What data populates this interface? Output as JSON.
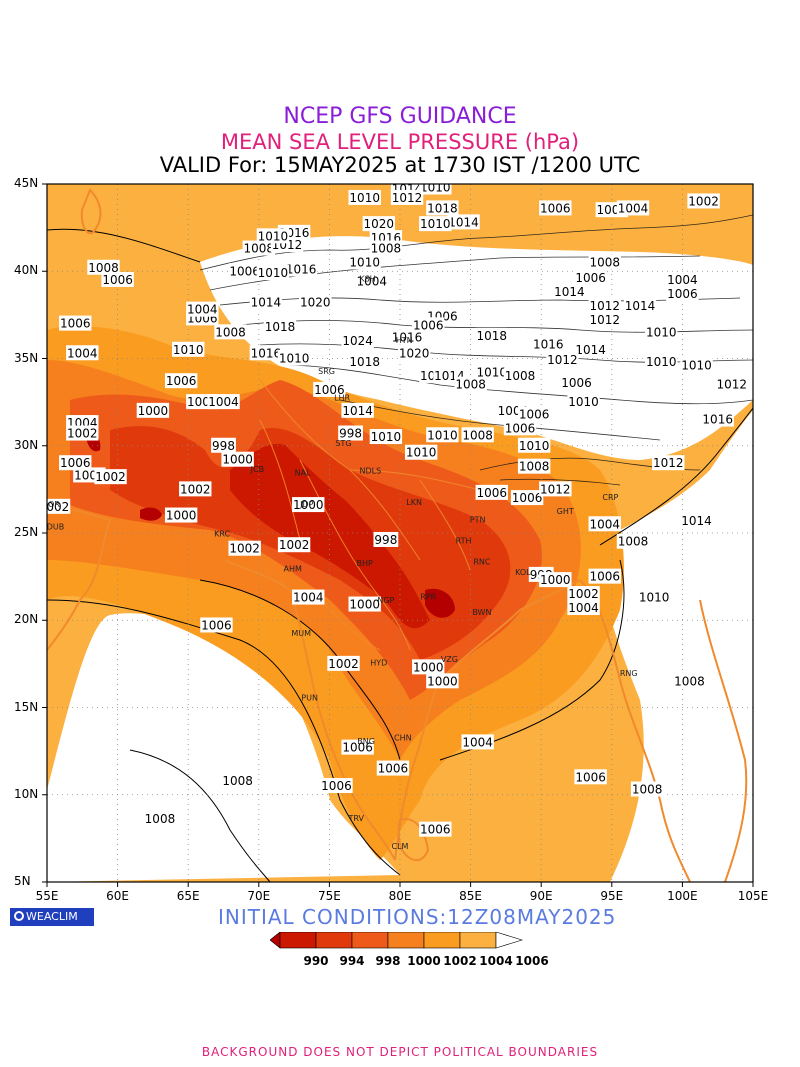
{
  "header": {
    "line1": "NCEP GFS GUIDANCE",
    "line2": "MEAN SEA LEVEL PRESSURE (hPa)",
    "line3": "VALID For: 15MAY2025 at 1730 IST /1200 UTC"
  },
  "colors": {
    "line1": "#8a1ed8",
    "line2": "#e0207a",
    "line3": "#000000",
    "init": "#5a7be0",
    "footer": "#e0207a",
    "coast": "#f08a2c",
    "land_low": "#fbb040",
    "sea_land": "#ffffff"
  },
  "axes": {
    "lat_labels": [
      "45N",
      "40N",
      "35N",
      "30N",
      "25N",
      "20N",
      "15N",
      "10N",
      "5N"
    ],
    "lon_labels": [
      "55E",
      "60E",
      "65E",
      "70E",
      "75E",
      "80E",
      "85E",
      "90E",
      "95E",
      "100E",
      "105E"
    ],
    "lat_range": [
      5,
      45
    ],
    "lon_range": [
      55,
      105
    ]
  },
  "logo": "WEACLIM",
  "initial_conditions": "INITIAL CONDITIONS:12Z08MAY2025",
  "colorbar": {
    "labels": [
      "990",
      "994",
      "998",
      "1000",
      "1002",
      "1004",
      "1006"
    ],
    "fills": [
      "#b40000",
      "#cc1800",
      "#e03a0c",
      "#ee5a1a",
      "#f7801e",
      "#fa9c20",
      "#fbb040",
      "#fcc870"
    ]
  },
  "contour_labels": [
    {
      "t": "1008",
      "lon": 59.0,
      "lat": 40.2
    },
    {
      "t": "1006",
      "lon": 60.0,
      "lat": 39.5
    },
    {
      "t": "1006",
      "lon": 57.0,
      "lat": 37.0
    },
    {
      "t": "1004",
      "lon": 57.5,
      "lat": 35.3
    },
    {
      "t": "1000",
      "lon": 62.5,
      "lat": 32.0
    },
    {
      "t": "1004",
      "lon": 57.5,
      "lat": 31.3
    },
    {
      "t": "1002",
      "lon": 57.5,
      "lat": 30.7
    },
    {
      "t": "1006",
      "lon": 57.0,
      "lat": 29.0
    },
    {
      "t": "1004",
      "lon": 58.0,
      "lat": 28.3
    },
    {
      "t": "1002",
      "lon": 59.5,
      "lat": 28.2
    },
    {
      "t": "1002",
      "lon": 55.5,
      "lat": 26.5
    },
    {
      "t": "1000",
      "lon": 64.5,
      "lat": 26.0
    },
    {
      "t": "1002",
      "lon": 65.5,
      "lat": 27.5
    },
    {
      "t": "998",
      "lon": 67.5,
      "lat": 30.0
    },
    {
      "t": "1000",
      "lon": 68.5,
      "lat": 29.2
    },
    {
      "t": "1006",
      "lon": 66.0,
      "lat": 37.3
    },
    {
      "t": "1008",
      "lon": 68.0,
      "lat": 36.5
    },
    {
      "t": "1004",
      "lon": 66.0,
      "lat": 37.8
    },
    {
      "t": "1010",
      "lon": 65.0,
      "lat": 35.5
    },
    {
      "t": "1006",
      "lon": 64.5,
      "lat": 33.7
    },
    {
      "t": "1008",
      "lon": 66.0,
      "lat": 32.5
    },
    {
      "t": "1004",
      "lon": 67.5,
      "lat": 32.5
    },
    {
      "t": "1008",
      "lon": 70.0,
      "lat": 41.3
    },
    {
      "t": "1006",
      "lon": 69.0,
      "lat": 40.0
    },
    {
      "t": "1016",
      "lon": 73.0,
      "lat": 40.1
    },
    {
      "t": "1010",
      "lon": 71.0,
      "lat": 39.9
    },
    {
      "t": "1014",
      "lon": 70.5,
      "lat": 38.2
    },
    {
      "t": "1020",
      "lon": 74.0,
      "lat": 38.2
    },
    {
      "t": "1018",
      "lon": 71.5,
      "lat": 36.8
    },
    {
      "t": "1016",
      "lon": 70.5,
      "lat": 35.3
    },
    {
      "t": "1010",
      "lon": 72.5,
      "lat": 35.0
    },
    {
      "t": "1016",
      "lon": 72.5,
      "lat": 42.2
    },
    {
      "t": "1012",
      "lon": 72.0,
      "lat": 41.5
    },
    {
      "t": "1010",
      "lon": 71.0,
      "lat": 42.0
    },
    {
      "t": "1010",
      "lon": 77.5,
      "lat": 44.2
    },
    {
      "t": "1014",
      "lon": 80.5,
      "lat": 44.7
    },
    {
      "t": "1010",
      "lon": 82.5,
      "lat": 44.8
    },
    {
      "t": "1012",
      "lon": 80.5,
      "lat": 44.2
    },
    {
      "t": "1018",
      "lon": 83.0,
      "lat": 43.6
    },
    {
      "t": "1014",
      "lon": 84.5,
      "lat": 42.8
    },
    {
      "t": "1020",
      "lon": 78.5,
      "lat": 42.7
    },
    {
      "t": "1016",
      "lon": 79.0,
      "lat": 41.9
    },
    {
      "t": "1008",
      "lon": 79.0,
      "lat": 41.3
    },
    {
      "t": "1010",
      "lon": 82.5,
      "lat": 42.7
    },
    {
      "t": "1010",
      "lon": 77.5,
      "lat": 40.5
    },
    {
      "t": "1004",
      "lon": 78.0,
      "lat": 39.4
    },
    {
      "t": "1006",
      "lon": 83.0,
      "lat": 37.4
    },
    {
      "t": "1016",
      "lon": 80.5,
      "lat": 36.2
    },
    {
      "t": "1020",
      "lon": 81.0,
      "lat": 35.3
    },
    {
      "t": "1018",
      "lon": 77.5,
      "lat": 34.8
    },
    {
      "t": "1024",
      "lon": 77.0,
      "lat": 36.0
    },
    {
      "t": "1016",
      "lon": 82.5,
      "lat": 34.0
    },
    {
      "t": "1014",
      "lon": 83.5,
      "lat": 34.0
    },
    {
      "t": "1006",
      "lon": 75.0,
      "lat": 33.2
    },
    {
      "t": "1014",
      "lon": 77.0,
      "lat": 32.0
    },
    {
      "t": "998",
      "lon": 76.5,
      "lat": 30.7
    },
    {
      "t": "1010",
      "lon": 79.0,
      "lat": 30.5
    },
    {
      "t": "1010",
      "lon": 81.5,
      "lat": 29.6
    },
    {
      "t": "1010",
      "lon": 83.0,
      "lat": 30.6
    },
    {
      "t": "1008",
      "lon": 85.5,
      "lat": 30.6
    },
    {
      "t": "1008",
      "lon": 85.0,
      "lat": 33.5
    },
    {
      "t": "1010",
      "lon": 86.5,
      "lat": 34.2
    },
    {
      "t": "1006",
      "lon": 82.0,
      "lat": 36.9
    },
    {
      "t": "1018",
      "lon": 86.5,
      "lat": 36.3
    },
    {
      "t": "1016",
      "lon": 90.5,
      "lat": 35.8
    },
    {
      "t": "1014",
      "lon": 93.5,
      "lat": 35.5
    },
    {
      "t": "1012",
      "lon": 91.5,
      "lat": 34.9
    },
    {
      "t": "1008",
      "lon": 88.5,
      "lat": 34.0
    },
    {
      "t": "1006",
      "lon": 92.5,
      "lat": 33.6
    },
    {
      "t": "1010",
      "lon": 93.0,
      "lat": 32.5
    },
    {
      "t": "1004",
      "lon": 88.0,
      "lat": 32.0
    },
    {
      "t": "1006",
      "lon": 88.5,
      "lat": 31.0
    },
    {
      "t": "1010",
      "lon": 89.5,
      "lat": 30.0
    },
    {
      "t": "1008",
      "lon": 89.5,
      "lat": 28.8
    },
    {
      "t": "1006",
      "lon": 86.5,
      "lat": 27.3
    },
    {
      "t": "1006",
      "lon": 89.0,
      "lat": 27.0
    },
    {
      "t": "1012",
      "lon": 91.0,
      "lat": 27.5
    },
    {
      "t": "1014",
      "lon": 92.0,
      "lat": 38.8
    },
    {
      "t": "1012",
      "lon": 94.5,
      "lat": 38.0
    },
    {
      "t": "1008",
      "lon": 94.5,
      "lat": 40.5
    },
    {
      "t": "1006",
      "lon": 93.5,
      "lat": 39.6
    },
    {
      "t": "1004",
      "lon": 100.0,
      "lat": 39.5
    },
    {
      "t": "1006",
      "lon": 100.0,
      "lat": 38.7
    },
    {
      "t": "1014",
      "lon": 97.0,
      "lat": 38.0
    },
    {
      "t": "1012",
      "lon": 94.5,
      "lat": 37.2
    },
    {
      "t": "1010",
      "lon": 98.5,
      "lat": 36.5
    },
    {
      "t": "1006",
      "lon": 91.0,
      "lat": 43.6
    },
    {
      "t": "1008",
      "lon": 95.0,
      "lat": 43.5
    },
    {
      "t": "1004",
      "lon": 96.5,
      "lat": 43.6
    },
    {
      "t": "1002",
      "lon": 101.5,
      "lat": 44.0
    },
    {
      "t": "1010",
      "lon": 98.5,
      "lat": 34.8
    },
    {
      "t": "1010",
      "lon": 101.0,
      "lat": 34.6
    },
    {
      "t": "1012",
      "lon": 103.5,
      "lat": 33.5
    },
    {
      "t": "1016",
      "lon": 102.5,
      "lat": 31.5
    },
    {
      "t": "1012",
      "lon": 99.0,
      "lat": 29.0
    },
    {
      "t": "1014",
      "lon": 101.0,
      "lat": 25.7
    },
    {
      "t": "1004",
      "lon": 94.5,
      "lat": 25.5
    },
    {
      "t": "1008",
      "lon": 96.5,
      "lat": 24.5
    },
    {
      "t": "1006",
      "lon": 94.5,
      "lat": 22.5
    },
    {
      "t": "1010",
      "lon": 98.0,
      "lat": 21.3
    },
    {
      "t": "1008",
      "lon": 100.5,
      "lat": 16.5
    },
    {
      "t": "1008",
      "lon": 97.5,
      "lat": 10.3
    },
    {
      "t": "1006",
      "lon": 93.5,
      "lat": 11.0
    },
    {
      "t": "1004",
      "lon": 85.5,
      "lat": 13.0
    },
    {
      "t": "1006",
      "lon": 82.5,
      "lat": 8.0
    },
    {
      "t": "1008",
      "lon": 68.5,
      "lat": 10.8
    },
    {
      "t": "1008",
      "lon": 63.0,
      "lat": 8.6
    },
    {
      "t": "1006",
      "lon": 67.0,
      "lat": 19.7
    },
    {
      "t": "1006",
      "lon": 79.5,
      "lat": 11.5
    },
    {
      "t": "1006",
      "lon": 75.5,
      "lat": 10.5
    },
    {
      "t": "1006",
      "lon": 77.0,
      "lat": 12.7
    },
    {
      "t": "1002",
      "lon": 76.0,
      "lat": 17.5
    },
    {
      "t": "1004",
      "lon": 73.5,
      "lat": 21.3
    },
    {
      "t": "1002",
      "lon": 69.0,
      "lat": 24.1
    },
    {
      "t": "1002",
      "lon": 72.5,
      "lat": 24.3
    },
    {
      "t": "1000",
      "lon": 73.5,
      "lat": 26.6
    },
    {
      "t": "998",
      "lon": 79.0,
      "lat": 24.6
    },
    {
      "t": "1000",
      "lon": 77.5,
      "lat": 20.9
    },
    {
      "t": "998",
      "lon": 90.0,
      "lat": 22.6
    },
    {
      "t": "1000",
      "lon": 91.0,
      "lat": 22.3
    },
    {
      "t": "1002",
      "lon": 93.0,
      "lat": 21.5
    },
    {
      "t": "1004",
      "lon": 93.0,
      "lat": 20.7
    },
    {
      "t": "1000",
      "lon": 82.0,
      "lat": 17.3
    },
    {
      "t": "1000",
      "lon": 83.0,
      "lat": 16.5
    },
    {
      "t": "1006",
      "lon": 89.5,
      "lat": 31.8
    }
  ],
  "stations": [
    {
      "t": "SRG",
      "lon": 74.8,
      "lat": 34.1
    },
    {
      "t": "LHR",
      "lon": 75.9,
      "lat": 32.6
    },
    {
      "t": "STG",
      "lon": 76.0,
      "lat": 30.0
    },
    {
      "t": "NDLS",
      "lon": 77.9,
      "lat": 28.4
    },
    {
      "t": "JCB",
      "lon": 69.9,
      "lat": 28.5
    },
    {
      "t": "NAL",
      "lon": 73.1,
      "lat": 28.3
    },
    {
      "t": "JDP",
      "lon": 73.4,
      "lat": 26.5
    },
    {
      "t": "LKN",
      "lon": 81.0,
      "lat": 26.6
    },
    {
      "t": "PTN",
      "lon": 85.5,
      "lat": 25.6
    },
    {
      "t": "RTH",
      "lon": 84.5,
      "lat": 24.4
    },
    {
      "t": "RNC",
      "lon": 85.8,
      "lat": 23.2
    },
    {
      "t": "KOL",
      "lon": 88.7,
      "lat": 22.6
    },
    {
      "t": "BHP",
      "lon": 77.5,
      "lat": 23.1
    },
    {
      "t": "AHM",
      "lon": 72.4,
      "lat": 22.8
    },
    {
      "t": "KRC",
      "lon": 67.4,
      "lat": 24.8
    },
    {
      "t": "NGP",
      "lon": 79.0,
      "lat": 21.0
    },
    {
      "t": "RPR",
      "lon": 82.0,
      "lat": 21.2
    },
    {
      "t": "BWN",
      "lon": 85.8,
      "lat": 20.3
    },
    {
      "t": "MUM",
      "lon": 73.0,
      "lat": 19.1
    },
    {
      "t": "HYD",
      "lon": 78.5,
      "lat": 17.4
    },
    {
      "t": "VZG",
      "lon": 83.5,
      "lat": 17.6
    },
    {
      "t": "PUN",
      "lon": 73.6,
      "lat": 15.4
    },
    {
      "t": "BNG",
      "lon": 77.6,
      "lat": 12.9
    },
    {
      "t": "CHN",
      "lon": 80.2,
      "lat": 13.1
    },
    {
      "t": "TRV",
      "lon": 76.9,
      "lat": 8.5
    },
    {
      "t": "CLM",
      "lon": 80.0,
      "lat": 6.9
    },
    {
      "t": "RNG",
      "lon": 96.2,
      "lat": 16.8
    },
    {
      "t": "CRP",
      "lon": 94.9,
      "lat": 26.9
    },
    {
      "t": "GHT",
      "lon": 91.7,
      "lat": 26.1
    },
    {
      "t": "HTN",
      "lon": 80.3,
      "lat": 35.9
    },
    {
      "t": "KSH",
      "lon": 77.7,
      "lat": 39.4
    },
    {
      "t": "DUB",
      "lon": 55.6,
      "lat": 25.2
    },
    {
      "t": "OR",
      "lon": 55.5,
      "lat": 26.5
    }
  ],
  "footer": "BACKGROUND DOES NOT DEPICT POLITICAL BOUNDARIES"
}
